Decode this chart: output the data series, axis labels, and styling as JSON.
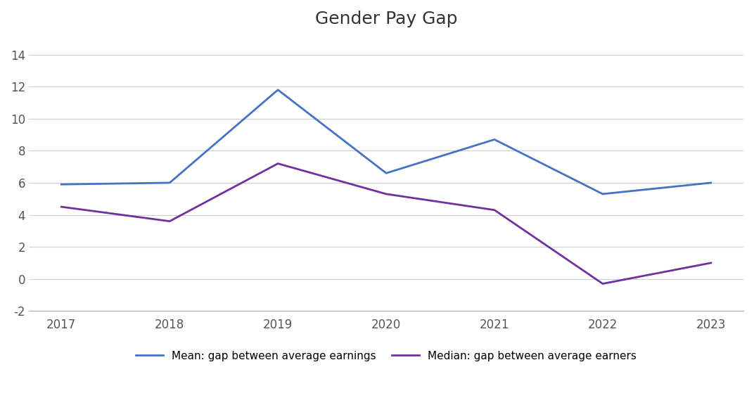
{
  "title": "Gender Pay Gap",
  "years": [
    2017,
    2018,
    2019,
    2020,
    2021,
    2022,
    2023
  ],
  "mean_values": [
    5.9,
    6.0,
    11.8,
    6.6,
    8.7,
    5.3,
    6.0
  ],
  "median_values": [
    4.5,
    3.6,
    7.2,
    5.3,
    4.3,
    -0.3,
    1.0
  ],
  "mean_color": "#4472C4",
  "median_color": "#7030A0",
  "mean_label": "Mean: gap between average earnings",
  "median_label": "Median: gap between average earners",
  "ylim": [
    -2,
    15
  ],
  "yticks": [
    -2,
    0,
    2,
    4,
    6,
    8,
    10,
    12,
    14
  ],
  "background_color": "#ffffff",
  "line_width": 2.0,
  "title_fontsize": 18,
  "tick_fontsize": 12,
  "legend_fontsize": 11,
  "grid_color": "#d0d0d0"
}
